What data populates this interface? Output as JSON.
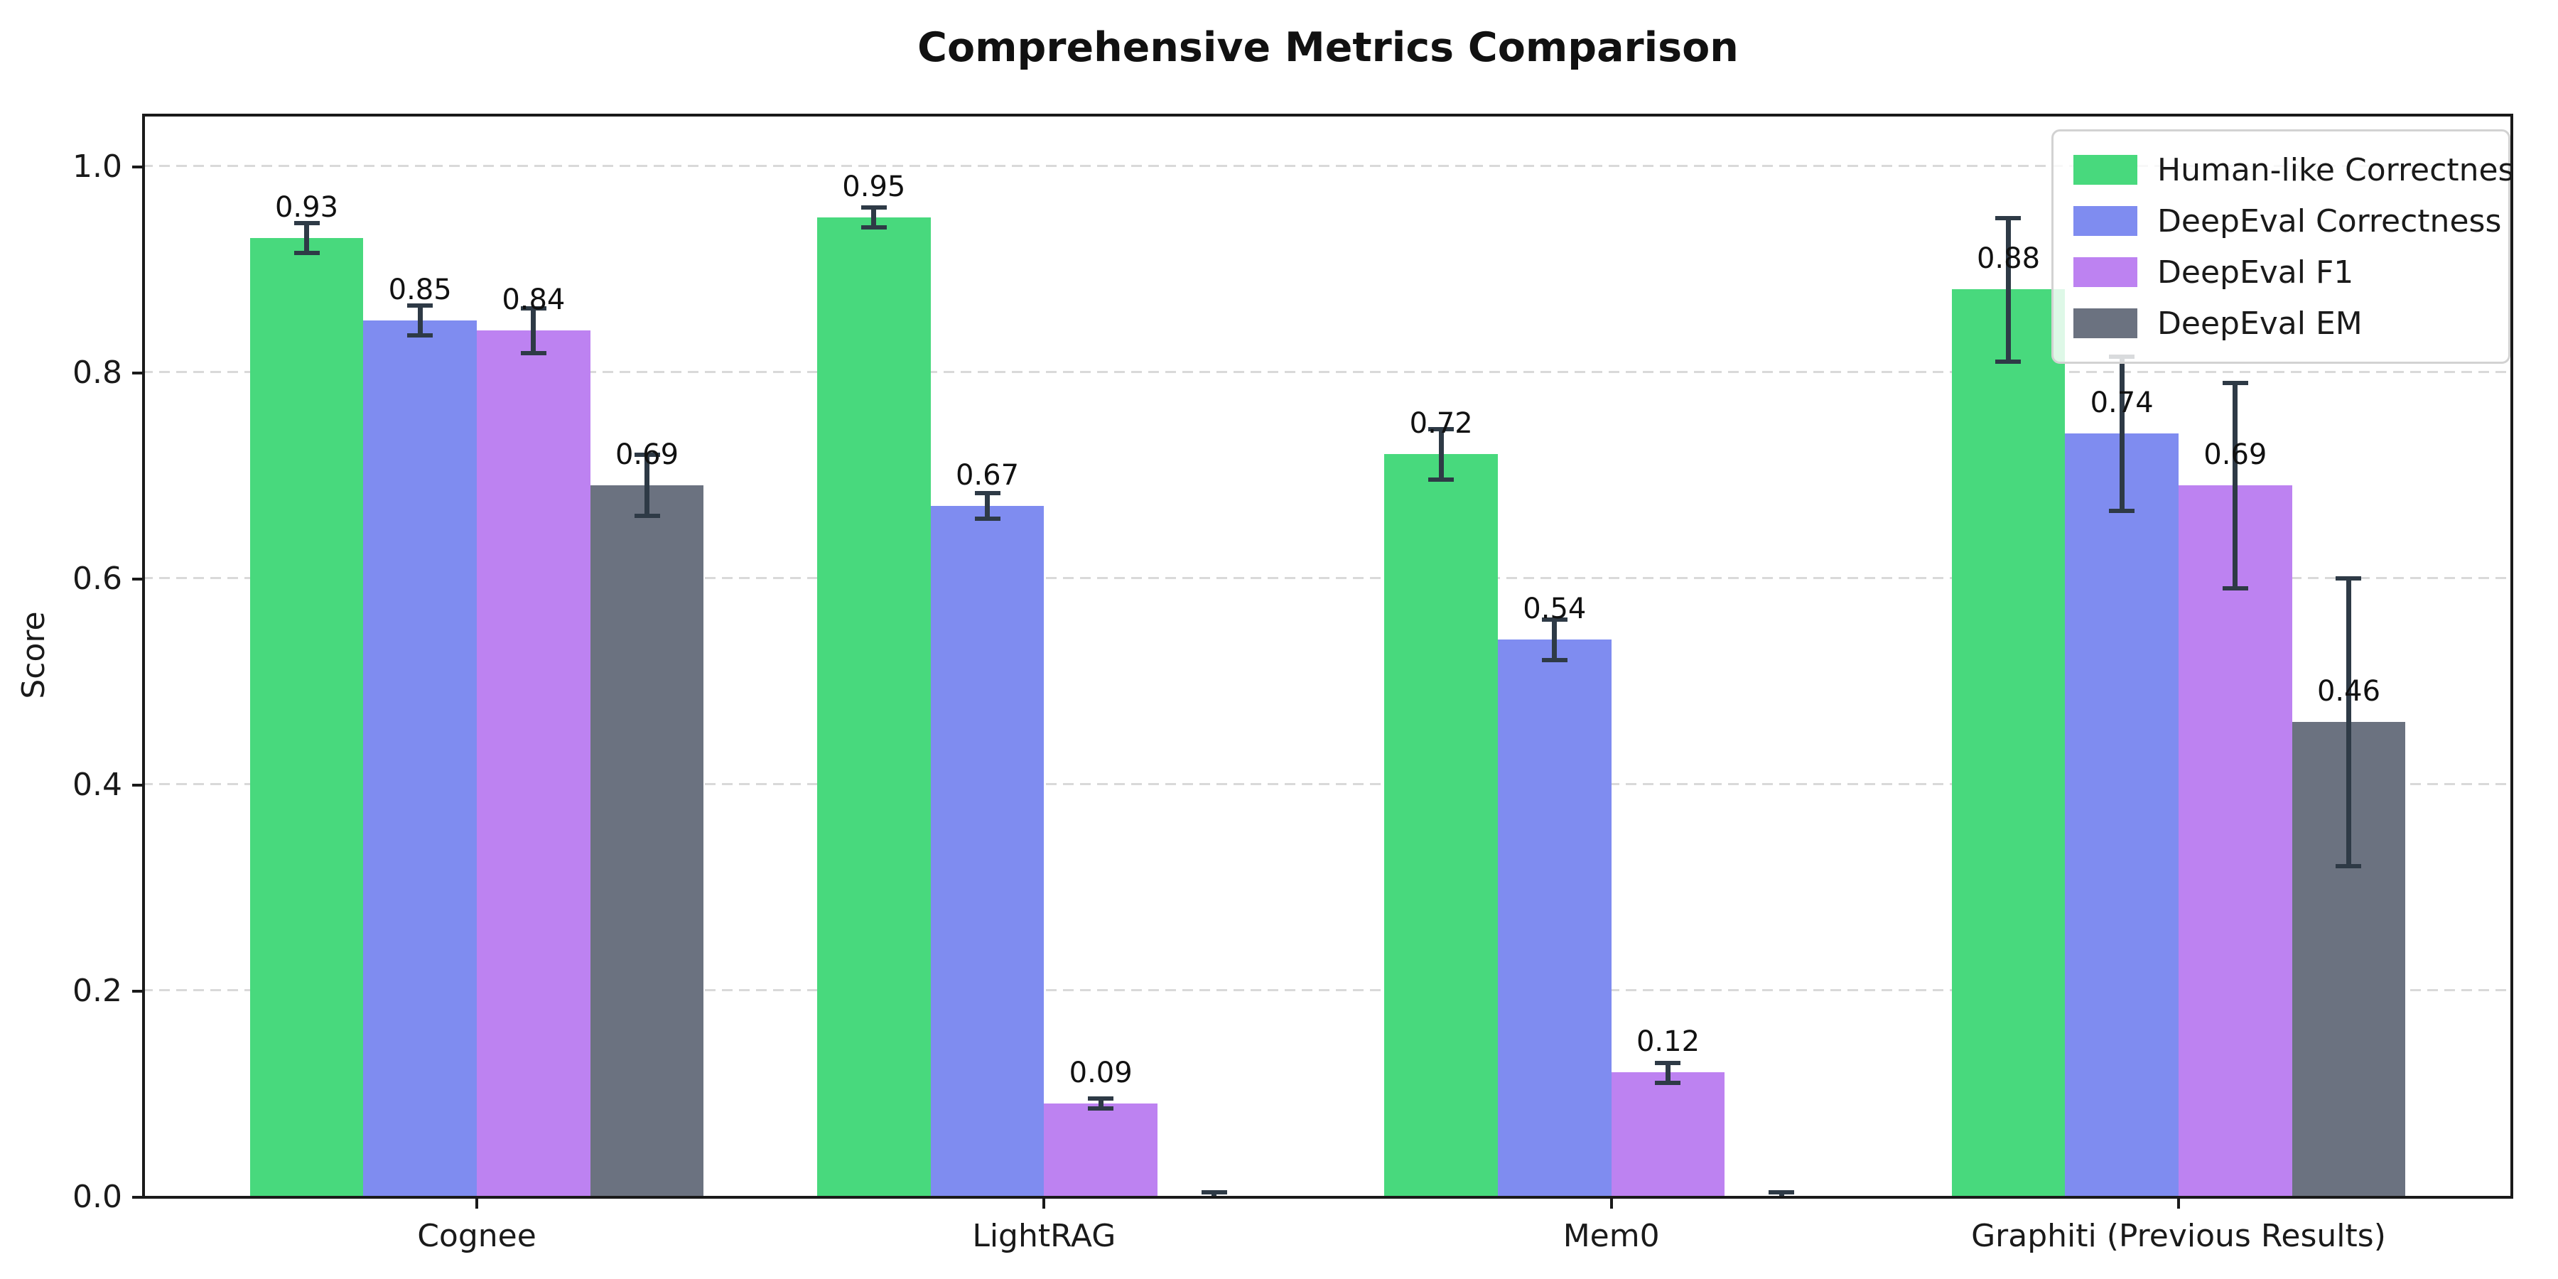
{
  "chart_data": {
    "type": "bar",
    "title": "Comprehensive Metrics Comparison",
    "ylabel": "Score",
    "xlabel": "",
    "categories": [
      "Cognee",
      "LightRAG",
      "Mem0",
      "Graphiti (Previous Results)"
    ],
    "series": [
      {
        "name": "Human-like Correctness",
        "color": "#48d97d",
        "values": [
          0.93,
          0.95,
          0.72,
          0.88
        ],
        "errors": [
          0.015,
          0.01,
          0.025,
          0.07
        ]
      },
      {
        "name": "DeepEval Correctness",
        "color": "#7f8cf0",
        "values": [
          0.85,
          0.67,
          0.54,
          0.74
        ],
        "errors": [
          0.015,
          0.013,
          0.02,
          0.075
        ]
      },
      {
        "name": "DeepEval F1",
        "color": "#bd82f1",
        "values": [
          0.84,
          0.09,
          0.12,
          0.69
        ],
        "errors": [
          0.022,
          0.005,
          0.01,
          0.1
        ]
      },
      {
        "name": "DeepEval EM",
        "color": "#6b7280",
        "values": [
          0.69,
          0.0,
          0.0,
          0.46
        ],
        "errors": [
          0.03,
          0.004,
          0.004,
          0.14
        ]
      }
    ],
    "y_ticks": [
      0.0,
      0.2,
      0.4,
      0.6,
      0.8,
      1.0
    ],
    "ylim": [
      0,
      1.05
    ],
    "grid": "horizontal-dashed",
    "legend_position": "upper right",
    "bar_label_decimals": 2,
    "zero_bars_unlabeled": true,
    "error_bar_color": "#2e3a46",
    "spine_color": "#1a1a1a",
    "grid_color": "#d9d9d9"
  }
}
